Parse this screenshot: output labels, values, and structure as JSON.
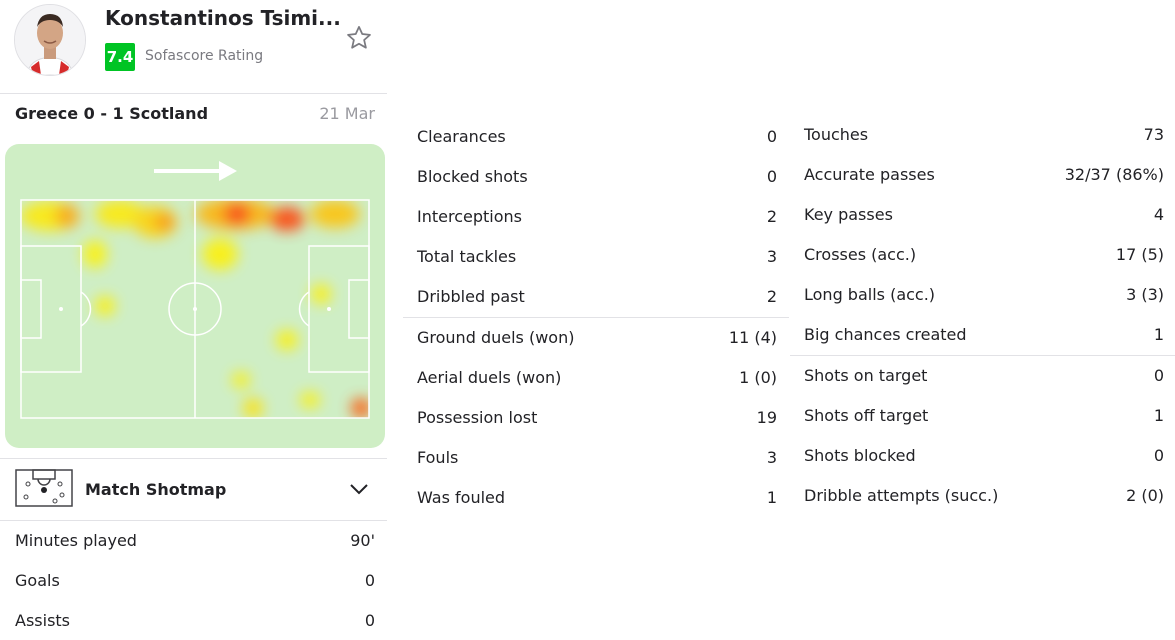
{
  "player": {
    "name": "Konstantinos Tsimi...",
    "rating": "7.4",
    "rating_label": "Sofascore Rating"
  },
  "match": {
    "title": "Greece 0 - 1 Scotland",
    "date": "21 Mar"
  },
  "shotmap": {
    "label": "Match Shotmap"
  },
  "summary_stats": [
    {
      "label": "Minutes played",
      "value": "90'"
    },
    {
      "label": "Goals",
      "value": "0"
    },
    {
      "label": "Assists",
      "value": "0"
    }
  ],
  "middle_stats": [
    {
      "label": "Clearances",
      "value": "0"
    },
    {
      "label": "Blocked shots",
      "value": "0"
    },
    {
      "label": "Interceptions",
      "value": "2"
    },
    {
      "label": "Total tackles",
      "value": "3"
    },
    {
      "label": "Dribbled past",
      "value": "2"
    },
    {
      "label": "Ground duels (won)",
      "value": "11 (4)"
    },
    {
      "label": "Aerial duels (won)",
      "value": "1 (0)"
    },
    {
      "label": "Possession lost",
      "value": "19"
    },
    {
      "label": "Fouls",
      "value": "3"
    },
    {
      "label": "Was fouled",
      "value": "1"
    }
  ],
  "right_stats": [
    {
      "label": "Touches",
      "value": "73"
    },
    {
      "label": "Accurate passes",
      "value": "32/37 (86%)"
    },
    {
      "label": "Key passes",
      "value": "4"
    },
    {
      "label": "Crosses (acc.)",
      "value": "17 (5)"
    },
    {
      "label": "Long balls (acc.)",
      "value": "3 (3)"
    },
    {
      "label": "Big chances created",
      "value": "1"
    },
    {
      "label": "Shots on target",
      "value": "0"
    },
    {
      "label": "Shots off target",
      "value": "1"
    },
    {
      "label": "Shots blocked",
      "value": "0"
    },
    {
      "label": "Dribble attempts (succ.)",
      "value": "2 (0)"
    }
  ],
  "colors": {
    "rating_green": "#00c424",
    "pitch_bg": "#cfeec5",
    "text": "#222226",
    "muted": "#7a7a80"
  },
  "icons": {
    "favorite": "star-outline-icon",
    "expand": "chevron-down-icon",
    "shotmap": "mini-pitch-icon",
    "direction": "arrow-right-icon"
  }
}
